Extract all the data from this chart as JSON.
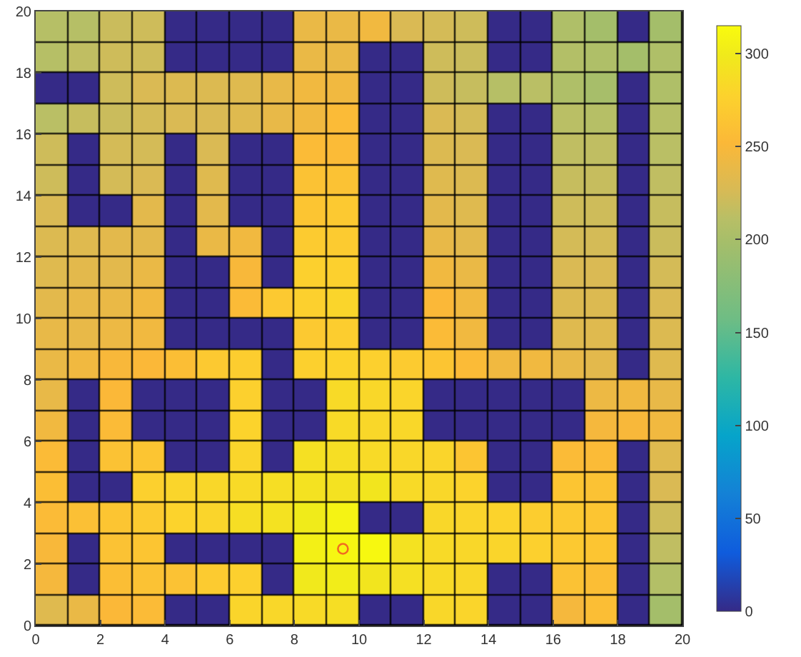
{
  "chart_data": {
    "type": "heatmap",
    "x": [
      0.5,
      1.5,
      2.5,
      3.5,
      4.5,
      5.5,
      6.5,
      7.5,
      8.5,
      9.5,
      10.5,
      11.5,
      12.5,
      13.5,
      14.5,
      15.5,
      16.5,
      17.5,
      18.5,
      19.5
    ],
    "xlim": [
      0,
      20
    ],
    "ylim": [
      0,
      20
    ],
    "xticks": [
      0,
      2,
      4,
      6,
      8,
      10,
      12,
      14,
      16,
      18,
      20
    ],
    "yticks": [
      0,
      2,
      4,
      6,
      8,
      10,
      12,
      14,
      16,
      18,
      20
    ],
    "clim": [
      0,
      315
    ],
    "cticks": [
      0,
      50,
      100,
      150,
      200,
      250,
      300
    ],
    "marker": "circle",
    "cells": [
      [
        210,
        210,
        220,
        222,
        0,
        0,
        0,
        0,
        240,
        240,
        245,
        228,
        225,
        222,
        0,
        0,
        205,
        198,
        0,
        198
      ],
      [
        210,
        215,
        222,
        222,
        0,
        0,
        0,
        0,
        240,
        240,
        0,
        0,
        222,
        220,
        0,
        0,
        208,
        205,
        198,
        205
      ],
      [
        0,
        0,
        222,
        228,
        230,
        230,
        232,
        238,
        245,
        245,
        0,
        0,
        222,
        218,
        210,
        212,
        205,
        200,
        0,
        205
      ],
      [
        212,
        218,
        220,
        225,
        228,
        228,
        232,
        238,
        245,
        255,
        0,
        0,
        228,
        225,
        0,
        0,
        212,
        210,
        0,
        210
      ],
      [
        222,
        0,
        225,
        225,
        0,
        228,
        0,
        0,
        255,
        255,
        0,
        0,
        230,
        228,
        0,
        0,
        215,
        215,
        0,
        212
      ],
      [
        222,
        0,
        225,
        228,
        0,
        232,
        0,
        0,
        262,
        262,
        0,
        0,
        232,
        230,
        0,
        0,
        218,
        218,
        0,
        215
      ],
      [
        228,
        0,
        0,
        235,
        0,
        235,
        0,
        0,
        265,
        268,
        0,
        0,
        235,
        232,
        0,
        0,
        222,
        222,
        0,
        218
      ],
      [
        230,
        232,
        235,
        235,
        0,
        240,
        245,
        0,
        270,
        270,
        0,
        0,
        238,
        235,
        0,
        0,
        225,
        225,
        0,
        220
      ],
      [
        232,
        235,
        235,
        240,
        0,
        0,
        250,
        0,
        275,
        275,
        0,
        0,
        245,
        240,
        0,
        0,
        228,
        228,
        0,
        225
      ],
      [
        235,
        238,
        240,
        245,
        0,
        0,
        255,
        268,
        275,
        280,
        0,
        0,
        252,
        245,
        0,
        0,
        230,
        230,
        0,
        228
      ],
      [
        238,
        238,
        242,
        245,
        0,
        0,
        0,
        0,
        268,
        272,
        0,
        0,
        255,
        245,
        0,
        0,
        232,
        232,
        0,
        230
      ],
      [
        240,
        245,
        250,
        252,
        258,
        268,
        272,
        0,
        275,
        278,
        275,
        270,
        265,
        255,
        245,
        245,
        238,
        235,
        0,
        232
      ],
      [
        238,
        0,
        252,
        0,
        0,
        0,
        275,
        0,
        0,
        285,
        282,
        280,
        0,
        0,
        0,
        0,
        0,
        242,
        245,
        238
      ],
      [
        245,
        0,
        255,
        0,
        0,
        0,
        278,
        0,
        0,
        285,
        282,
        282,
        0,
        0,
        0,
        0,
        0,
        248,
        250,
        245
      ],
      [
        255,
        0,
        262,
        265,
        0,
        0,
        280,
        0,
        290,
        288,
        285,
        282,
        280,
        265,
        0,
        0,
        255,
        255,
        0,
        232
      ],
      [
        258,
        0,
        0,
        275,
        280,
        282,
        285,
        288,
        292,
        292,
        295,
        285,
        282,
        278,
        0,
        0,
        265,
        262,
        0,
        228
      ],
      [
        255,
        260,
        265,
        270,
        278,
        280,
        288,
        292,
        300,
        308,
        0,
        0,
        282,
        280,
        278,
        272,
        268,
        265,
        0,
        222
      ],
      [
        250,
        0,
        262,
        265,
        0,
        0,
        0,
        0,
        305,
        310,
        312,
        292,
        285,
        282,
        280,
        275,
        268,
        265,
        0,
        215
      ],
      [
        248,
        0,
        258,
        262,
        262,
        270,
        275,
        0,
        298,
        302,
        295,
        290,
        285,
        282,
        0,
        0,
        262,
        258,
        0,
        208
      ],
      [
        232,
        240,
        252,
        255,
        0,
        0,
        280,
        282,
        285,
        288,
        0,
        0,
        282,
        280,
        0,
        0,
        248,
        258,
        0,
        198
      ]
    ],
    "series": [
      {
        "type": "scatter",
        "x": [
          9.5
        ],
        "values": [
          2.5
        ],
        "color": "#f26b21"
      }
    ]
  }
}
